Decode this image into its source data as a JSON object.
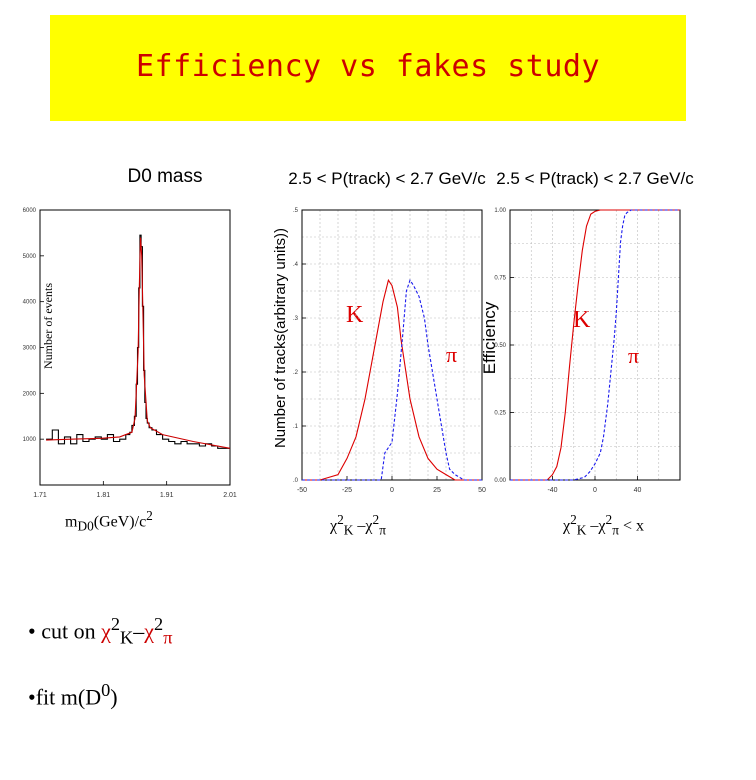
{
  "title": "Efficiency vs fakes study",
  "colors": {
    "banner": "#ffff00",
    "title": "#cc0000",
    "fit": "#cc0000",
    "kaon": "#dd0000",
    "pion": "#1a1aee"
  },
  "panels": {
    "mass": {
      "title": "D0 mass",
      "ylabel": "Number of events",
      "xcaption": {
        "m": "m",
        "sub": "D0",
        "unit": "(GeV)/c",
        "sup": "2"
      }
    },
    "dist": {
      "title": "2.5 < P(track) < 2.7 GeV/c",
      "ylabel": "Number of tracks(arbitrary units))",
      "kaon_label": "K",
      "pion_label": "π",
      "xcaption": {
        "chi": "χ",
        "sup": "2",
        "subK": "K",
        "minus": " –",
        "subPi": "π"
      }
    },
    "eff": {
      "title": "2.5 < P(track) < 2.7 GeV/c",
      "ylabel": "Efficiency",
      "kaon_label": "K",
      "pion_label": "π",
      "xcaption": {
        "chi": "χ",
        "sup": "2",
        "subK": "K",
        "minus": " –",
        "subPi": "π",
        "tail": " < x"
      }
    }
  },
  "bullets": {
    "b1": {
      "prefix": "• cut on ",
      "chi": "χ",
      "sup": "2",
      "subK": "K",
      "minus": "–",
      "subPi": "π"
    },
    "b2": {
      "prefix": "•fit m(D",
      "sup": "0",
      "suffix": ")"
    }
  },
  "chart_data": [
    {
      "type": "line",
      "title": "D0 mass",
      "ylabel": "Number of events",
      "xlabel": "mD0(GeV)/c2",
      "xlim": [
        1.7,
        2.01
      ],
      "ylim": [
        0,
        6000
      ],
      "xticks": [
        "1.71",
        "1.81",
        "1.91",
        "2.01"
      ],
      "yticks": [
        "1000",
        "2000",
        "3000",
        "4000",
        "5000",
        "6000"
      ],
      "series": [
        {
          "style": "histogram",
          "x": [
            1.715,
            1.725,
            1.735,
            1.745,
            1.755,
            1.765,
            1.775,
            1.785,
            1.795,
            1.805,
            1.815,
            1.825,
            1.835,
            1.845,
            1.848,
            1.852,
            1.856,
            1.858,
            1.86,
            1.862,
            1.864,
            1.866,
            1.868,
            1.87,
            1.872,
            1.874,
            1.876,
            1.88,
            1.885,
            1.895,
            1.905,
            1.915,
            1.925,
            1.935,
            1.945,
            1.955,
            1.965,
            1.975,
            1.985,
            1.995,
            2.005
          ],
          "y": [
            1000,
            1200,
            900,
            1050,
            900,
            1100,
            950,
            1000,
            1050,
            1000,
            1100,
            950,
            1000,
            1100,
            1150,
            1300,
            1500,
            2200,
            3000,
            4300,
            5450,
            5200,
            3900,
            2500,
            1800,
            1450,
            1350,
            1250,
            1200,
            1100,
            1000,
            950,
            900,
            950,
            900,
            900,
            850,
            900,
            850,
            800,
            800
          ]
        },
        {
          "style": "fit",
          "x": [
            1.71,
            1.75,
            1.8,
            1.83,
            1.85,
            1.855,
            1.86,
            1.862,
            1.864,
            1.866,
            1.868,
            1.87,
            1.875,
            1.88,
            1.9,
            1.95,
            2.01
          ],
          "y": [
            980,
            1000,
            1020,
            1050,
            1150,
            1450,
            2900,
            4300,
            5400,
            5000,
            3700,
            2400,
            1400,
            1250,
            1100,
            950,
            800
          ]
        }
      ]
    },
    {
      "type": "line",
      "title": "2.5 < P(track) < 2.7 GeV/c",
      "ylabel": "Number of tracks(arbitrary units))",
      "xlim": [
        -50,
        50
      ],
      "xticks": [
        "-50",
        "-25",
        "0",
        "25",
        "50"
      ],
      "yticks": [
        ".0",
        ".1",
        ".2",
        ".3",
        ".4",
        ".5"
      ],
      "ylim": [
        0,
        0.5
      ],
      "series": [
        {
          "name": "K",
          "x": [
            -50,
            -40,
            -30,
            -25,
            -20,
            -15,
            -10,
            -5,
            -2,
            0,
            3,
            5,
            10,
            15,
            20,
            25,
            30,
            35,
            40,
            50
          ],
          "y": [
            0,
            0,
            0.01,
            0.04,
            0.08,
            0.15,
            0.24,
            0.33,
            0.37,
            0.36,
            0.32,
            0.26,
            0.15,
            0.08,
            0.04,
            0.02,
            0.01,
            0,
            0,
            0
          ]
        },
        {
          "name": "π",
          "x": [
            -50,
            -10,
            -6,
            -4,
            0,
            3,
            6,
            8,
            10,
            12,
            15,
            18,
            20,
            22,
            25,
            28,
            30,
            32,
            35,
            40,
            50
          ],
          "y": [
            0,
            0,
            0,
            0.05,
            0.07,
            0.16,
            0.27,
            0.35,
            0.37,
            0.36,
            0.34,
            0.3,
            0.25,
            0.21,
            0.15,
            0.09,
            0.05,
            0.02,
            0.01,
            0,
            0
          ]
        }
      ]
    },
    {
      "type": "line",
      "title": "2.5 < P(track) < 2.7 GeV/c",
      "ylabel": "Efficiency",
      "xlim": [
        -80,
        80
      ],
      "ylim": [
        0,
        1
      ],
      "xticks": [
        "",
        "-40",
        "0",
        "40",
        ""
      ],
      "yticks": [
        "0.00",
        "0.25",
        "0.50",
        "0.75",
        "1.00"
      ],
      "series": [
        {
          "name": "K",
          "x": [
            -80,
            -45,
            -40,
            -36,
            -32,
            -28,
            -24,
            -20,
            -16,
            -12,
            -8,
            -4,
            0,
            5,
            10,
            20,
            40,
            80
          ],
          "y": [
            0,
            0,
            0.02,
            0.05,
            0.12,
            0.25,
            0.42,
            0.58,
            0.72,
            0.85,
            0.94,
            0.985,
            0.995,
            1,
            1,
            1,
            1,
            1
          ]
        },
        {
          "name": "π",
          "x": [
            -80,
            -20,
            -10,
            -5,
            0,
            5,
            8,
            12,
            15,
            18,
            20,
            22,
            24,
            26,
            28,
            30,
            34,
            40,
            80
          ],
          "y": [
            0,
            0,
            0.01,
            0.03,
            0.06,
            0.1,
            0.16,
            0.28,
            0.4,
            0.52,
            0.62,
            0.75,
            0.88,
            0.94,
            0.98,
            0.99,
            1,
            1,
            1
          ]
        }
      ]
    }
  ]
}
